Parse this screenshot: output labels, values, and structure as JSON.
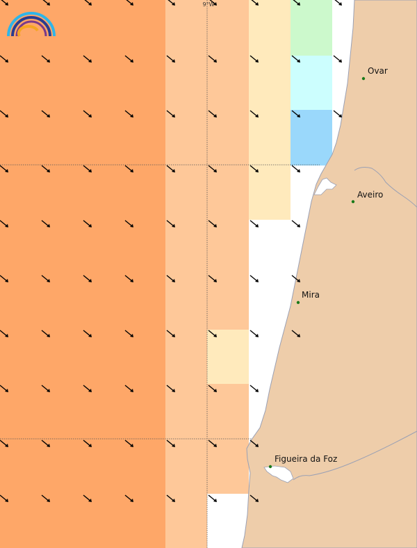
{
  "map": {
    "grid_label": "9°W",
    "colors": {
      "sea_orange": "#fea768",
      "sea_light_orange": "#fec899",
      "sea_cream": "#ffeabc",
      "sea_green": "#ccf9cc",
      "sea_cyan": "#ccfefe",
      "sea_blue": "#9ad8fb",
      "sea_white": "#ffffff",
      "land": "#eecdaa",
      "coastline": "#9aa0b4",
      "city_dot": "#1a7a1a",
      "arrow": "#000000",
      "gridline": "#555555"
    },
    "wind_direction": "south-east",
    "cities": [
      {
        "id": "ovar",
        "name": "Ovar"
      },
      {
        "id": "aveiro",
        "name": "Aveiro"
      },
      {
        "id": "mira",
        "name": "Mira"
      },
      {
        "id": "figueira",
        "name": "Figueira da Foz"
      }
    ]
  },
  "logo": {
    "icon": "rainbow-logo-icon"
  }
}
